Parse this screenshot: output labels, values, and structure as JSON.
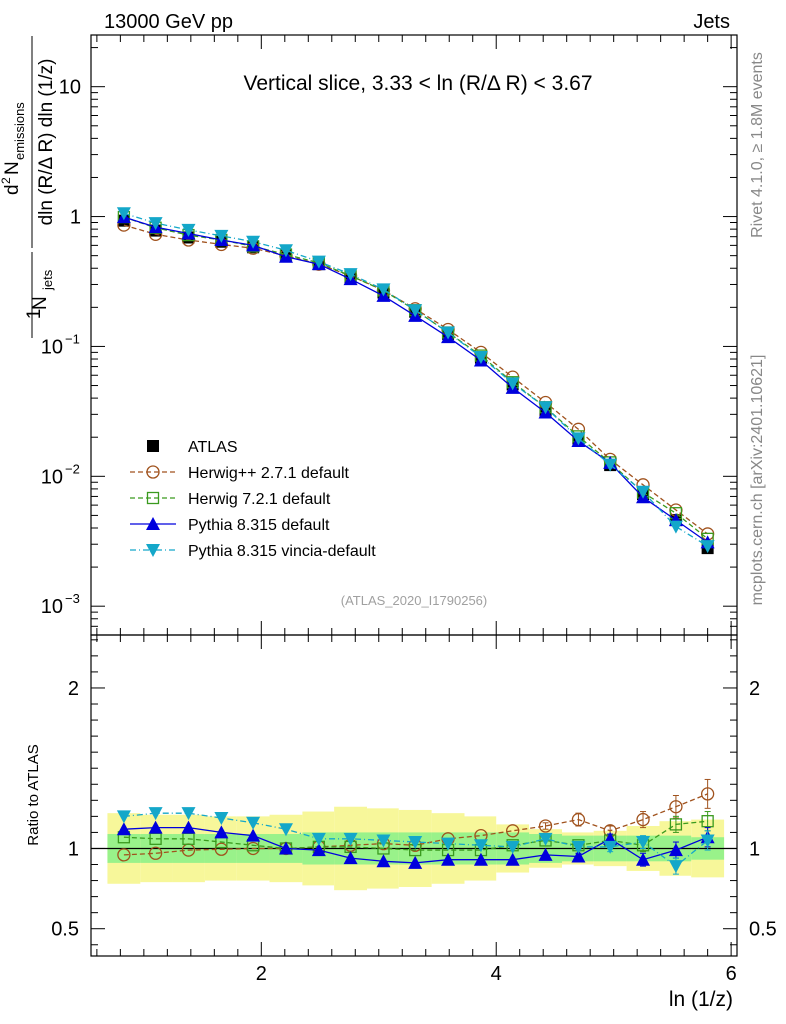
{
  "header": {
    "left": "13000 GeV pp",
    "right": "Jets"
  },
  "side_labels": {
    "rivet": "Rivet 4.1.0, ≥ 1.8M events",
    "mcplots": "mcplots.cern.ch [arXiv:2401.10621]"
  },
  "colors": {
    "atlas": "#000000",
    "herwigpp": "#a0521d",
    "herwig7": "#3a9a1e",
    "pythia": "#0000dd",
    "vincia": "#14a7c9",
    "band_inner": "#99f28a",
    "band_outer": "#f7f79a"
  },
  "chart_data": [
    {
      "type": "line",
      "title": "Vertical slice, 3.33 < ln (R/Δ R) < 3.67",
      "watermark": "(ATLAS_2020_I1790256)",
      "ylabel": "1/N_jets d²N_emissions / dln(R/ΔR) dln(1/z)",
      "ylabel_parts": {
        "a": "1",
        "b": "N",
        "b_sub": "jets",
        "c": "d",
        "c_sup": "2",
        "d": "N",
        "d_sub": "emissions",
        "e": "dln (R/Δ R) dln (1/z)"
      },
      "yscale": "log",
      "ylim": [
        0.0006,
        25
      ],
      "xlim": [
        0.55,
        6.05
      ],
      "yticks": [
        {
          "value": 10,
          "base": "10",
          "exp": ""
        },
        {
          "value": 1,
          "base": "1",
          "exp": ""
        },
        {
          "value": 0.1,
          "base": "10",
          "exp": "−1"
        },
        {
          "value": 0.01,
          "base": "10",
          "exp": "−2"
        },
        {
          "value": 0.001,
          "base": "10",
          "exp": "−3"
        }
      ],
      "x": [
        0.83,
        1.1,
        1.38,
        1.66,
        1.93,
        2.21,
        2.49,
        2.76,
        3.04,
        3.31,
        3.59,
        3.87,
        4.14,
        4.42,
        4.7,
        4.97,
        5.25,
        5.53,
        5.8
      ],
      "series": [
        {
          "name": "ATLAS",
          "key": "atlas",
          "marker": "square",
          "dash": "",
          "values": [
            0.93,
            0.78,
            0.69,
            0.64,
            0.58,
            0.5,
            0.43,
            0.34,
            0.26,
            0.185,
            0.125,
            0.082,
            0.051,
            0.032,
            0.0195,
            0.0122,
            0.0073,
            0.0046,
            0.0028
          ]
        },
        {
          "name": "Herwig++ 2.7.1 default",
          "key": "herwigpp",
          "marker": "circle-open",
          "dash": "5,3",
          "values": [
            0.86,
            0.73,
            0.66,
            0.61,
            0.57,
            0.5,
            0.43,
            0.35,
            0.27,
            0.195,
            0.135,
            0.09,
            0.058,
            0.037,
            0.023,
            0.0135,
            0.0086,
            0.0055,
            0.0036
          ]
        },
        {
          "name": "Herwig 7.2.1 default",
          "key": "herwig7",
          "marker": "square-open",
          "dash": "5,3",
          "values": [
            0.99,
            0.82,
            0.72,
            0.66,
            0.59,
            0.51,
            0.44,
            0.35,
            0.27,
            0.19,
            0.128,
            0.085,
            0.053,
            0.034,
            0.0203,
            0.0128,
            0.0075,
            0.0052,
            0.0033
          ]
        },
        {
          "name": "Pythia 8.315 default",
          "key": "pythia",
          "marker": "triangle-up",
          "dash": "",
          "values": [
            0.99,
            0.83,
            0.74,
            0.66,
            0.6,
            0.49,
            0.43,
            0.33,
            0.245,
            0.172,
            0.118,
            0.078,
            0.048,
            0.031,
            0.0187,
            0.0127,
            0.0069,
            0.0046,
            0.0031
          ]
        },
        {
          "name": "Pythia 8.315 vincia-default",
          "key": "vincia",
          "marker": "triangle-down",
          "dash": "6,3,1,3",
          "values": [
            1.06,
            0.89,
            0.79,
            0.71,
            0.64,
            0.55,
            0.45,
            0.36,
            0.275,
            0.19,
            0.128,
            0.083,
            0.052,
            0.034,
            0.0196,
            0.0123,
            0.0076,
            0.0041,
            0.0029
          ]
        }
      ],
      "legend_position": "bottom-left"
    },
    {
      "type": "line",
      "ylabel": "Ratio to ATLAS",
      "xlabel": "ln (1/z)",
      "ylim": [
        0.33,
        2.33
      ],
      "xlim": [
        0.55,
        6.05
      ],
      "yticks": [
        {
          "value": 2,
          "label": "2"
        },
        {
          "value": 1,
          "label": "1"
        },
        {
          "value": 0.5,
          "label": "0.5"
        }
      ],
      "xticks": [
        {
          "value": 2,
          "label": "2"
        },
        {
          "value": 4,
          "label": "4"
        },
        {
          "value": 6,
          "label": "6"
        }
      ],
      "x_edges": [
        0.69,
        0.97,
        1.24,
        1.52,
        1.79,
        2.07,
        2.35,
        2.62,
        2.9,
        3.17,
        3.45,
        3.73,
        4.0,
        4.28,
        4.56,
        4.83,
        5.11,
        5.39,
        5.66,
        5.94
      ],
      "band_inner_halfwidth": [
        0.09,
        0.09,
        0.09,
        0.09,
        0.09,
        0.09,
        0.1,
        0.1,
        0.1,
        0.1,
        0.1,
        0.1,
        0.1,
        0.09,
        0.08,
        0.08,
        0.08,
        0.08,
        0.07
      ],
      "band_outer_halfwidth": [
        0.22,
        0.21,
        0.21,
        0.2,
        0.2,
        0.21,
        0.23,
        0.26,
        0.25,
        0.24,
        0.22,
        0.2,
        0.15,
        0.12,
        0.1,
        0.11,
        0.14,
        0.17,
        0.18
      ],
      "x": [
        0.83,
        1.1,
        1.38,
        1.66,
        1.93,
        2.21,
        2.49,
        2.76,
        3.04,
        3.31,
        3.59,
        3.87,
        4.14,
        4.42,
        4.7,
        4.97,
        5.25,
        5.53,
        5.8
      ],
      "series": [
        {
          "name": "Herwig++ 2.7.1 default",
          "key": "herwigpp",
          "marker": "circle-open",
          "dash": "5,3",
          "values": [
            0.96,
            0.97,
            0.99,
            0.995,
            1.0,
            1.0,
            1.01,
            1.02,
            1.03,
            1.02,
            1.06,
            1.08,
            1.11,
            1.14,
            1.18,
            1.11,
            1.18,
            1.26,
            1.34
          ],
          "errors": [
            0,
            0,
            0,
            0,
            0,
            0,
            0,
            0,
            0,
            0,
            0,
            0,
            0,
            0.02,
            0.04,
            0.03,
            0.05,
            0.07,
            0.09
          ]
        },
        {
          "name": "Herwig 7.2.1 default",
          "key": "herwig7",
          "marker": "square-open",
          "dash": "5,3",
          "values": [
            1.07,
            1.06,
            1.06,
            1.04,
            1.02,
            1.0,
            1.01,
            1.01,
            1.0,
            0.99,
            0.99,
            0.99,
            1.02,
            1.05,
            1.02,
            1.05,
            1.02,
            1.15,
            1.17
          ],
          "errors": [
            0,
            0,
            0,
            0,
            0,
            0,
            0,
            0,
            0,
            0,
            0,
            0,
            0,
            0,
            0.02,
            0.03,
            0.04,
            0.05,
            0.06
          ]
        },
        {
          "name": "Pythia 8.315 default",
          "key": "pythia",
          "marker": "triangle-up",
          "dash": "",
          "values": [
            1.12,
            1.13,
            1.13,
            1.1,
            1.08,
            1.0,
            0.99,
            0.94,
            0.92,
            0.91,
            0.93,
            0.93,
            0.93,
            0.96,
            0.95,
            1.06,
            0.93,
            0.99,
            1.07
          ],
          "errors": [
            0,
            0,
            0,
            0,
            0,
            0,
            0,
            0,
            0,
            0,
            0,
            0,
            0,
            0,
            0.02,
            0.03,
            0.04,
            0.05,
            0.06
          ]
        },
        {
          "name": "Pythia 8.315 vincia-default",
          "key": "vincia",
          "marker": "triangle-down",
          "dash": "6,3,1,3",
          "values": [
            1.2,
            1.22,
            1.22,
            1.19,
            1.16,
            1.12,
            1.06,
            1.06,
            1.05,
            1.04,
            1.03,
            1.02,
            1.01,
            1.06,
            1.01,
            1.01,
            1.04,
            0.89,
            1.05
          ],
          "errors": [
            0,
            0,
            0,
            0,
            0,
            0,
            0,
            0,
            0,
            0,
            0,
            0,
            0,
            0,
            0.02,
            0.03,
            0.04,
            0.05,
            0.06
          ]
        }
      ]
    }
  ]
}
